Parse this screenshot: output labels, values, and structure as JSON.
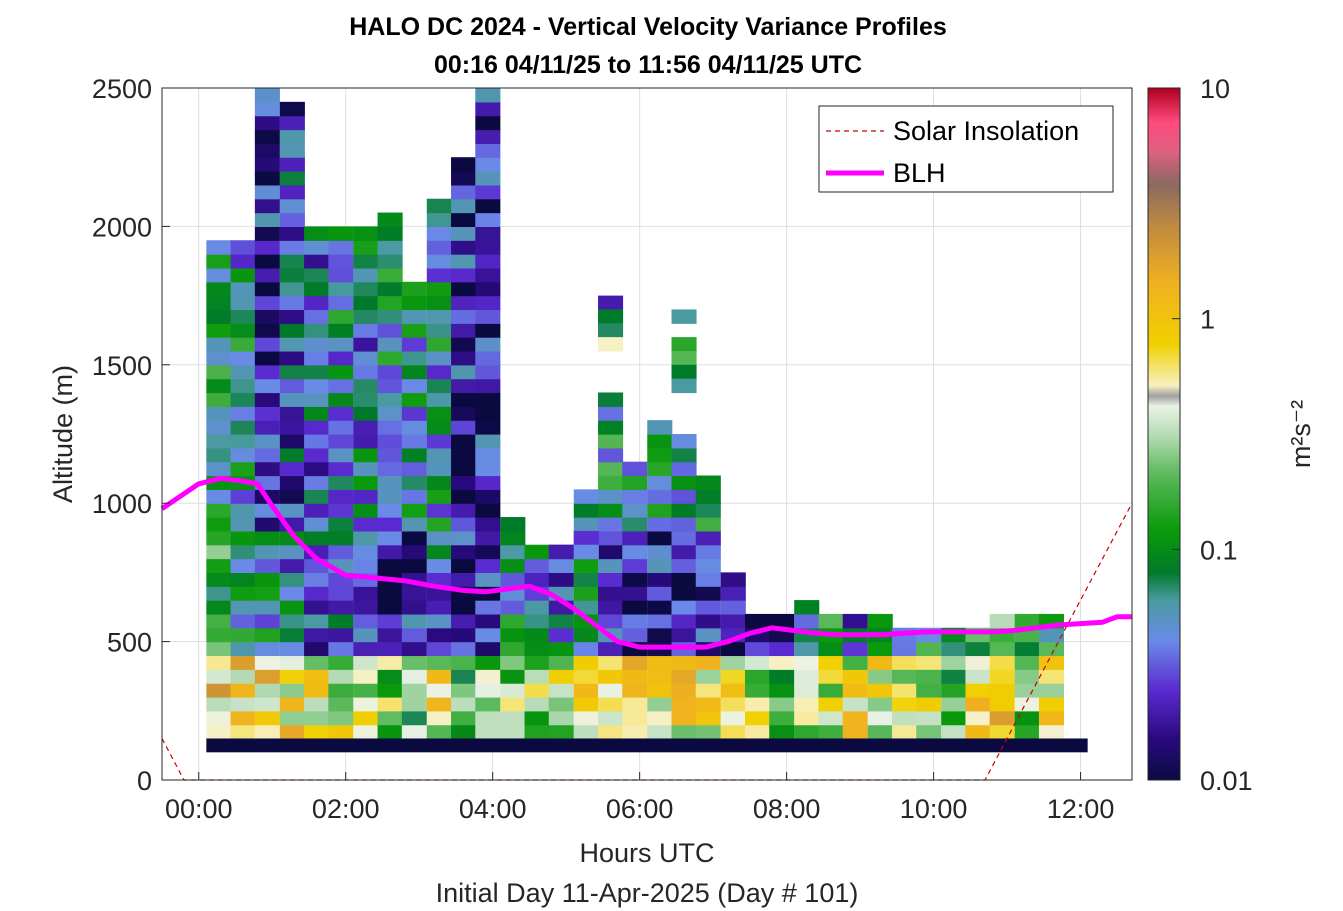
{
  "chart_data": {
    "type": "heatmap",
    "title": "HALO DC 2024 - Vertical Velocity Variance Profiles",
    "subtitle": "00:16 04/11/25 to 11:56 04/11/25  UTC",
    "xlabel": "Hours UTC",
    "xlabel2": "Initial Day 11-Apr-2025 (Day # 101)",
    "ylabel": "Altitude (m)",
    "colorbar_label": "m²s⁻²",
    "x_unit": "hours UTC",
    "xlim": [
      -0.5,
      12.7
    ],
    "ylim": [
      0,
      2500
    ],
    "x_ticks": [
      0,
      2,
      4,
      6,
      8,
      10,
      12
    ],
    "x_tick_labels": [
      "00:00",
      "02:00",
      "04:00",
      "06:00",
      "08:00",
      "10:00",
      "12:00"
    ],
    "y_ticks": [
      0,
      500,
      1000,
      1500,
      2000,
      2500
    ],
    "y_tick_labels": [
      "0",
      "500",
      "1000",
      "1500",
      "2000",
      "2500"
    ],
    "color_scale": "log",
    "clim": [
      0.01,
      10
    ],
    "colorbar_ticks": [
      0.01,
      0.1,
      1,
      10
    ],
    "colorbar_tick_labels": [
      "0.01",
      "0.1",
      "1",
      "10"
    ],
    "grid": true,
    "legend": {
      "position": "top-right",
      "entries": [
        {
          "label": "Solar Insolation",
          "color": "#cc0000",
          "style": "dashed"
        },
        {
          "label": "BLH",
          "color": "#ff00ff",
          "style": "solid"
        }
      ]
    },
    "bin_width_hours": 0.333,
    "bin_height_m": 50,
    "variance_columns": [
      {
        "t": 0.27,
        "top": 1950,
        "low": 0.8,
        "mid": 0.1,
        "up": 0.07
      },
      {
        "t": 0.6,
        "top": 1950,
        "low": 0.7,
        "mid": 0.09,
        "up": 0.06
      },
      {
        "t": 0.93,
        "top": 2500,
        "low": 0.8,
        "mid": 0.05,
        "up": 0.02
      },
      {
        "t": 1.27,
        "top": 2450,
        "low": 0.7,
        "mid": 0.04,
        "up": 0.03
      },
      {
        "t": 1.6,
        "top": 2000,
        "low": 0.6,
        "mid": 0.03,
        "up": 0.04
      },
      {
        "t": 1.93,
        "top": 2000,
        "low": 0.4,
        "mid": 0.03,
        "up": 0.06
      },
      {
        "t": 2.27,
        "top": 2000,
        "low": 0.3,
        "mid": 0.03,
        "up": 0.05
      },
      {
        "t": 2.6,
        "top": 2050,
        "low": 0.25,
        "mid": 0.02,
        "up": 0.06
      },
      {
        "t": 2.93,
        "top": 1800,
        "low": 0.2,
        "mid": 0.02,
        "up": 0.06
      },
      {
        "t": 3.27,
        "top": 2100,
        "low": 0.5,
        "mid": 0.04,
        "up": 0.06
      },
      {
        "t": 3.6,
        "top": 2250,
        "low": 0.15,
        "mid": 0.02,
        "up": 0.02
      },
      {
        "t": 3.93,
        "top": 2500,
        "low": 0.2,
        "mid": 0.02,
        "up": 0.02
      },
      {
        "t": 4.27,
        "top": 950,
        "low": 0.25,
        "mid": 0.08,
        "up": 0.08
      },
      {
        "t": 4.6,
        "top": 850,
        "low": 0.3,
        "mid": 0.05,
        "up": 0.05
      },
      {
        "t": 4.93,
        "top": 850,
        "low": 0.35,
        "mid": 0.04,
        "up": 0.04
      },
      {
        "t": 5.27,
        "top": 1050,
        "low": 0.6,
        "mid": 0.05,
        "up": 0.03
      },
      {
        "t": 5.6,
        "top": 1400,
        "low": 0.6,
        "mid": 0.03,
        "up": 0.08
      },
      {
        "t": 5.93,
        "top": 1150,
        "low": 0.6,
        "mid": 0.02,
        "up": 0.08
      },
      {
        "t": 6.27,
        "top": 1300,
        "low": 0.7,
        "mid": 0.02,
        "up": 0.08
      },
      {
        "t": 6.6,
        "top": 1250,
        "low": 0.6,
        "mid": 0.02,
        "up": 0.06
      },
      {
        "t": 6.93,
        "top": 1100,
        "low": 0.5,
        "mid": 0.03,
        "up": 0.07
      },
      {
        "t": 7.27,
        "top": 750,
        "low": 0.5,
        "mid": 0.015,
        "up": 0.02
      },
      {
        "t": 7.6,
        "top": 600,
        "low": 0.3,
        "mid": 0.02,
        "up": 0.03
      },
      {
        "t": 7.93,
        "top": 600,
        "low": 0.2,
        "mid": 0.015,
        "up": 0.02
      },
      {
        "t": 8.27,
        "top": 650,
        "low": 0.3,
        "mid": 0.06,
        "up": 0.08
      },
      {
        "t": 8.6,
        "top": 600,
        "low": 0.4,
        "mid": 0.08,
        "up": 0.08
      },
      {
        "t": 8.93,
        "top": 600,
        "low": 0.5,
        "mid": 0.03,
        "up": 0.04
      },
      {
        "t": 9.27,
        "top": 600,
        "low": 0.5,
        "mid": 0.1,
        "up": 0.1
      },
      {
        "t": 9.6,
        "top": 550,
        "low": 0.3,
        "mid": 0.08,
        "up": 0.08
      },
      {
        "t": 9.93,
        "top": 550,
        "low": 0.3,
        "mid": 0.08,
        "up": 0.08
      },
      {
        "t": 10.27,
        "top": 550,
        "low": 0.2,
        "mid": 0.07,
        "up": 0.07
      },
      {
        "t": 10.6,
        "top": 550,
        "low": 0.6,
        "mid": 0.1,
        "up": 0.1
      },
      {
        "t": 10.93,
        "top": 600,
        "low": 0.7,
        "mid": 0.12,
        "up": 0.12
      },
      {
        "t": 11.27,
        "top": 600,
        "low": 0.3,
        "mid": 0.1,
        "up": 0.1
      },
      {
        "t": 11.6,
        "top": 600,
        "low": 0.6,
        "mid": 0.08,
        "up": 0.08
      }
    ],
    "isolated_bins": [
      {
        "t": 5.6,
        "alt": 1700,
        "value": 0.02
      },
      {
        "t": 5.6,
        "alt": 1650,
        "value": 0.08
      },
      {
        "t": 5.6,
        "alt": 1600,
        "value": 0.07
      },
      {
        "t": 5.6,
        "alt": 1550,
        "value": 0.5
      },
      {
        "t": 6.6,
        "alt": 1650,
        "value": 0.06
      },
      {
        "t": 6.6,
        "alt": 1550,
        "value": 0.15
      },
      {
        "t": 6.6,
        "alt": 1500,
        "value": 0.2
      },
      {
        "t": 6.6,
        "alt": 1450,
        "value": 0.08
      },
      {
        "t": 6.6,
        "alt": 1400,
        "value": 0.06
      },
      {
        "t": 4.93,
        "alt": 800,
        "value": 0.02
      },
      {
        "t": 5.27,
        "alt": 850,
        "value": 0.025
      },
      {
        "t": 5.27,
        "alt": 800,
        "value": 0.04
      }
    ],
    "baseline_bin": {
      "t_start": 0.27,
      "t_end": 11.93,
      "alt": 125,
      "value": 0.01
    },
    "series": [
      {
        "name": "BLH",
        "x": [
          -0.5,
          0.0,
          0.3,
          0.6,
          0.8,
          1.0,
          1.3,
          1.6,
          2.0,
          2.4,
          2.8,
          3.2,
          3.6,
          3.9,
          4.2,
          4.5,
          4.8,
          5.1,
          5.4,
          5.7,
          6.0,
          6.3,
          6.6,
          6.9,
          7.2,
          7.5,
          7.8,
          8.1,
          8.4,
          8.7,
          9.0,
          9.3,
          9.6,
          9.9,
          10.2,
          10.5,
          10.8,
          11.1,
          11.4,
          11.7,
          12.0,
          12.3,
          12.5,
          12.7
        ],
        "y": [
          980,
          1070,
          1090,
          1080,
          1070,
          990,
          880,
          800,
          740,
          730,
          720,
          700,
          685,
          680,
          690,
          700,
          670,
          620,
          560,
          500,
          480,
          480,
          480,
          480,
          500,
          530,
          550,
          540,
          530,
          525,
          525,
          525,
          530,
          535,
          535,
          535,
          535,
          540,
          550,
          560,
          565,
          570,
          590,
          590
        ]
      },
      {
        "name": "Solar Insolation",
        "x": [
          -0.5,
          -0.2,
          10.7,
          12.7
        ],
        "y": [
          150,
          0,
          0,
          1000
        ]
      }
    ]
  }
}
